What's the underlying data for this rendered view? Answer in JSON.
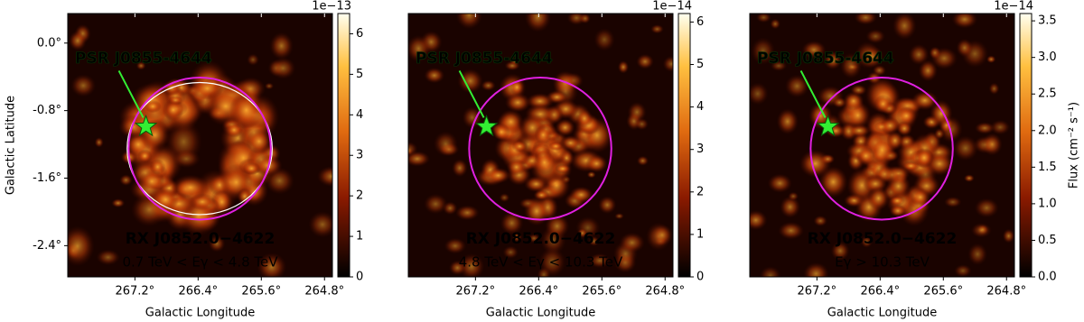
{
  "chart_data": [
    {
      "type": "heatmap",
      "xlabel": "Galactic Longitude",
      "ylabel": "Galactic Latitude",
      "xlim": [
        268.05,
        264.7
      ],
      "ylim": [
        -2.77,
        0.35
      ],
      "xticks": [
        {
          "value": 267.2,
          "label": "267.2°"
        },
        {
          "value": 266.4,
          "label": "266.4°"
        },
        {
          "value": 265.6,
          "label": "265.6°"
        },
        {
          "value": 264.8,
          "label": "264.8°"
        }
      ],
      "yticks": [
        {
          "value": 0.0,
          "label": "0.0°"
        },
        {
          "value": -0.8,
          "label": "-0.8°"
        },
        {
          "value": -1.6,
          "label": "-1.6°"
        },
        {
          "value": -2.4,
          "label": "-2.4°"
        }
      ],
      "clim": [
        0,
        6.5
      ],
      "cticks": [
        0,
        1,
        2,
        3,
        4,
        5,
        6
      ],
      "coffset": "1e−13",
      "energy": "0.7 TeV < Eγ < 4.8 TeV",
      "pulsar": {
        "label": "PSR J0855-4644",
        "lon": 267.06,
        "lat": -0.99,
        "color": "#33ee33"
      },
      "remnant": {
        "label": "RX J0852.0−4622",
        "lon": 266.38,
        "lat": -1.25,
        "radius": 0.9,
        "color": "#e020e0"
      }
    },
    {
      "type": "heatmap",
      "xlabel": "Galactic Longitude",
      "xlim": [
        268.05,
        264.7
      ],
      "ylim": [
        -2.77,
        0.35
      ],
      "xticks": [
        {
          "value": 267.2,
          "label": "267.2°"
        },
        {
          "value": 266.4,
          "label": "266.4°"
        },
        {
          "value": 265.6,
          "label": "265.6°"
        },
        {
          "value": 264.8,
          "label": "264.8°"
        }
      ],
      "clim": [
        0,
        6.2
      ],
      "cticks": [
        0,
        1,
        2,
        3,
        4,
        5,
        6
      ],
      "coffset": "1e−14",
      "energy": "4.8 TeV < Eγ < 10.3 TeV",
      "pulsar": {
        "label": "PSR J0855-4644",
        "lon": 267.06,
        "lat": -0.99,
        "color": "#33ee33"
      },
      "remnant": {
        "label": "RX J0852.0−4622",
        "lon": 266.38,
        "lat": -1.25,
        "radius": 0.9,
        "color": "#e020e0"
      }
    },
    {
      "type": "heatmap",
      "xlabel": "Galactic Longitude",
      "xlim": [
        268.05,
        264.7
      ],
      "ylim": [
        -2.77,
        0.35
      ],
      "xticks": [
        {
          "value": 267.2,
          "label": "267.2°"
        },
        {
          "value": 266.4,
          "label": "266.4°"
        },
        {
          "value": 265.6,
          "label": "265.6°"
        },
        {
          "value": 264.8,
          "label": "264.8°"
        }
      ],
      "clim": [
        0,
        3.6
      ],
      "cticks": [
        {
          "value": 0,
          "label": "0.0"
        },
        0.5,
        {
          "value": 1,
          "label": "1.0"
        },
        1.5,
        {
          "value": 2,
          "label": "2.0"
        },
        2.5,
        {
          "value": 3,
          "label": "3.0"
        },
        3.5
      ],
      "coffset": "1e−14",
      "clabel": "Flux (cm⁻² s⁻¹)",
      "energy": "Eγ > 10.3 TeV",
      "pulsar": {
        "label": "PSR J0855-4644",
        "lon": 267.06,
        "lat": -0.99,
        "color": "#33ee33"
      },
      "remnant": {
        "label": "RX J0852.0−4622",
        "lon": 266.38,
        "lat": -1.25,
        "radius": 0.9,
        "color": "#e020e0"
      }
    }
  ]
}
